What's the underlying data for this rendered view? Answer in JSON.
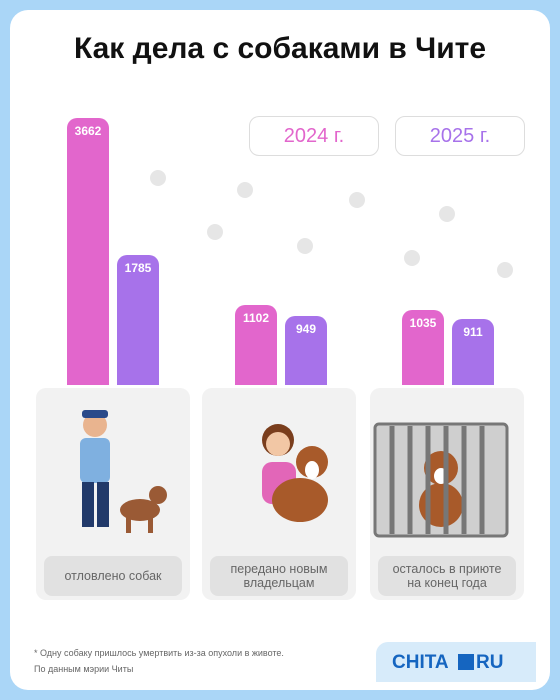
{
  "chart_data": {
    "type": "bar",
    "title": "Как дела с собаками в Чите",
    "categories": [
      "отловлено собак",
      "передано новым владельцам",
      "осталось в приюте на конец года"
    ],
    "series": [
      {
        "name": "2024 г.",
        "color": "#e266cc",
        "values": [
          3662,
          1102,
          1035
        ]
      },
      {
        "name": "2025 г.",
        "color": "#a772ea",
        "values": [
          1785,
          949,
          911
        ]
      }
    ],
    "footnote": "* Одну собаку пришлось умертвить из-за опухоли в животе.",
    "source": "По данным мэрии Читы",
    "logo": {
      "left": "CHITA",
      "right": "RU"
    }
  }
}
